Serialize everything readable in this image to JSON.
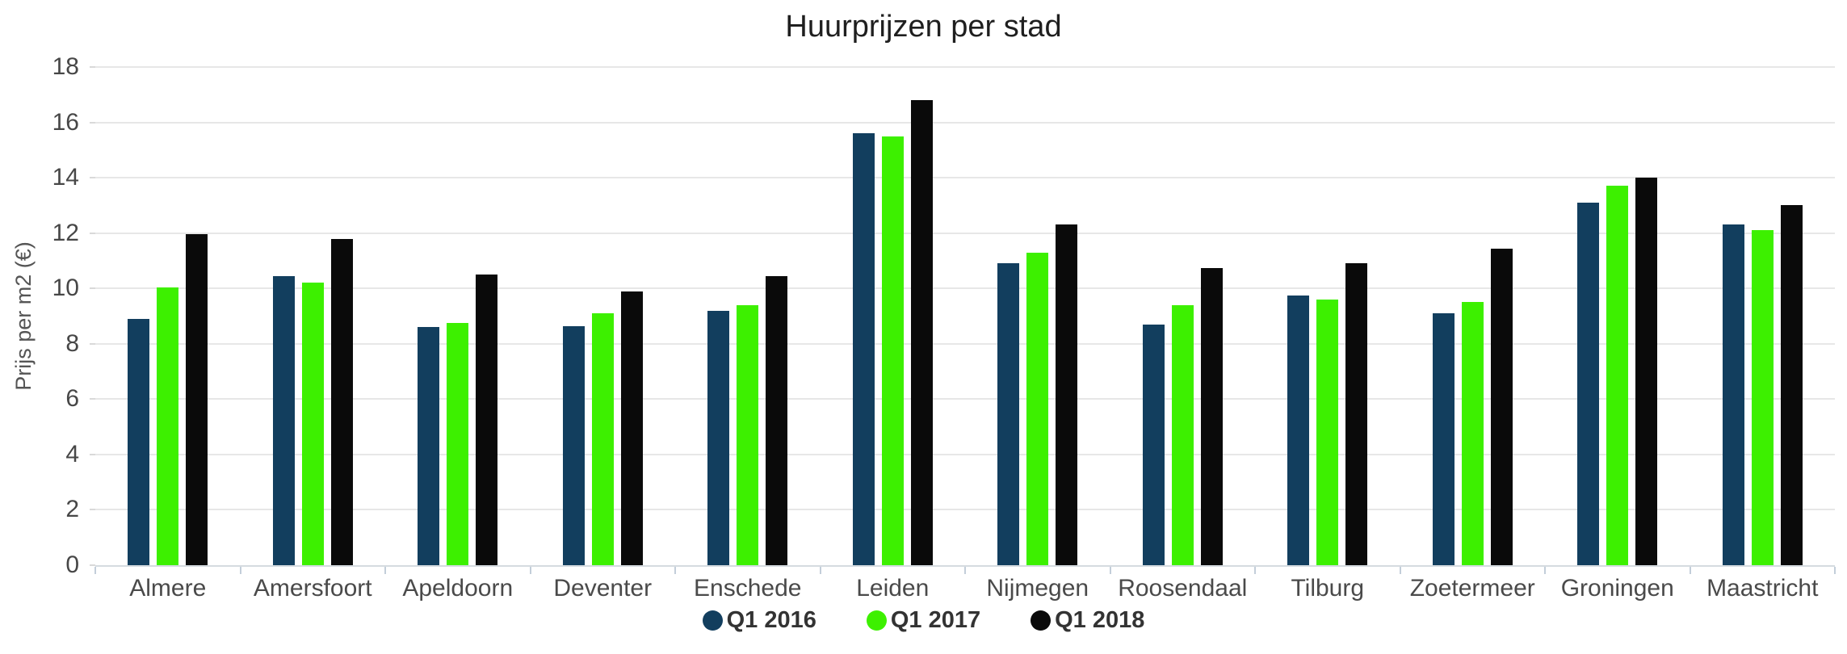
{
  "chart_data": {
    "type": "bar",
    "title": "Huurprijzen per stad",
    "xlabel": "",
    "ylabel": "Prijs per m2 (€)",
    "categories": [
      "Almere",
      "Amersfoort",
      "Apeldoorn",
      "Deventer",
      "Enschede",
      "Leiden",
      "Nijmegen",
      "Roosendaal",
      "Tilburg",
      "Zoetermeer",
      "Groningen",
      "Maastricht"
    ],
    "series": [
      {
        "name": "Q1 2016",
        "color": "#123E5E",
        "values": [
          8.9,
          10.45,
          8.6,
          8.65,
          9.2,
          15.6,
          10.9,
          8.7,
          9.75,
          9.1,
          13.1,
          12.3
        ]
      },
      {
        "name": "Q1 2017",
        "color": "#3DF000",
        "values": [
          10.05,
          10.2,
          8.75,
          9.1,
          9.4,
          15.5,
          11.3,
          9.4,
          9.6,
          9.5,
          13.7,
          12.1
        ]
      },
      {
        "name": "Q1 2018",
        "color": "#0A0A0A",
        "values": [
          11.95,
          11.8,
          10.5,
          9.9,
          10.45,
          16.8,
          12.3,
          10.75,
          10.9,
          11.45,
          14.0,
          13.0
        ]
      }
    ],
    "ylim": [
      0,
      18
    ],
    "ytick_step": 2,
    "yticks": [
      0,
      2,
      4,
      6,
      8,
      10,
      12,
      14,
      16,
      18
    ],
    "grid": true,
    "legend_position": "bottom",
    "colors": {
      "background": "#FFFFFF",
      "gridline": "#E7E7E7",
      "axis_line": "#D5DBE0",
      "axis_tick": "#C3CEDA",
      "title_text": "#1F1F1F",
      "axis_text": "#474747",
      "legend_text": "#333333"
    }
  }
}
